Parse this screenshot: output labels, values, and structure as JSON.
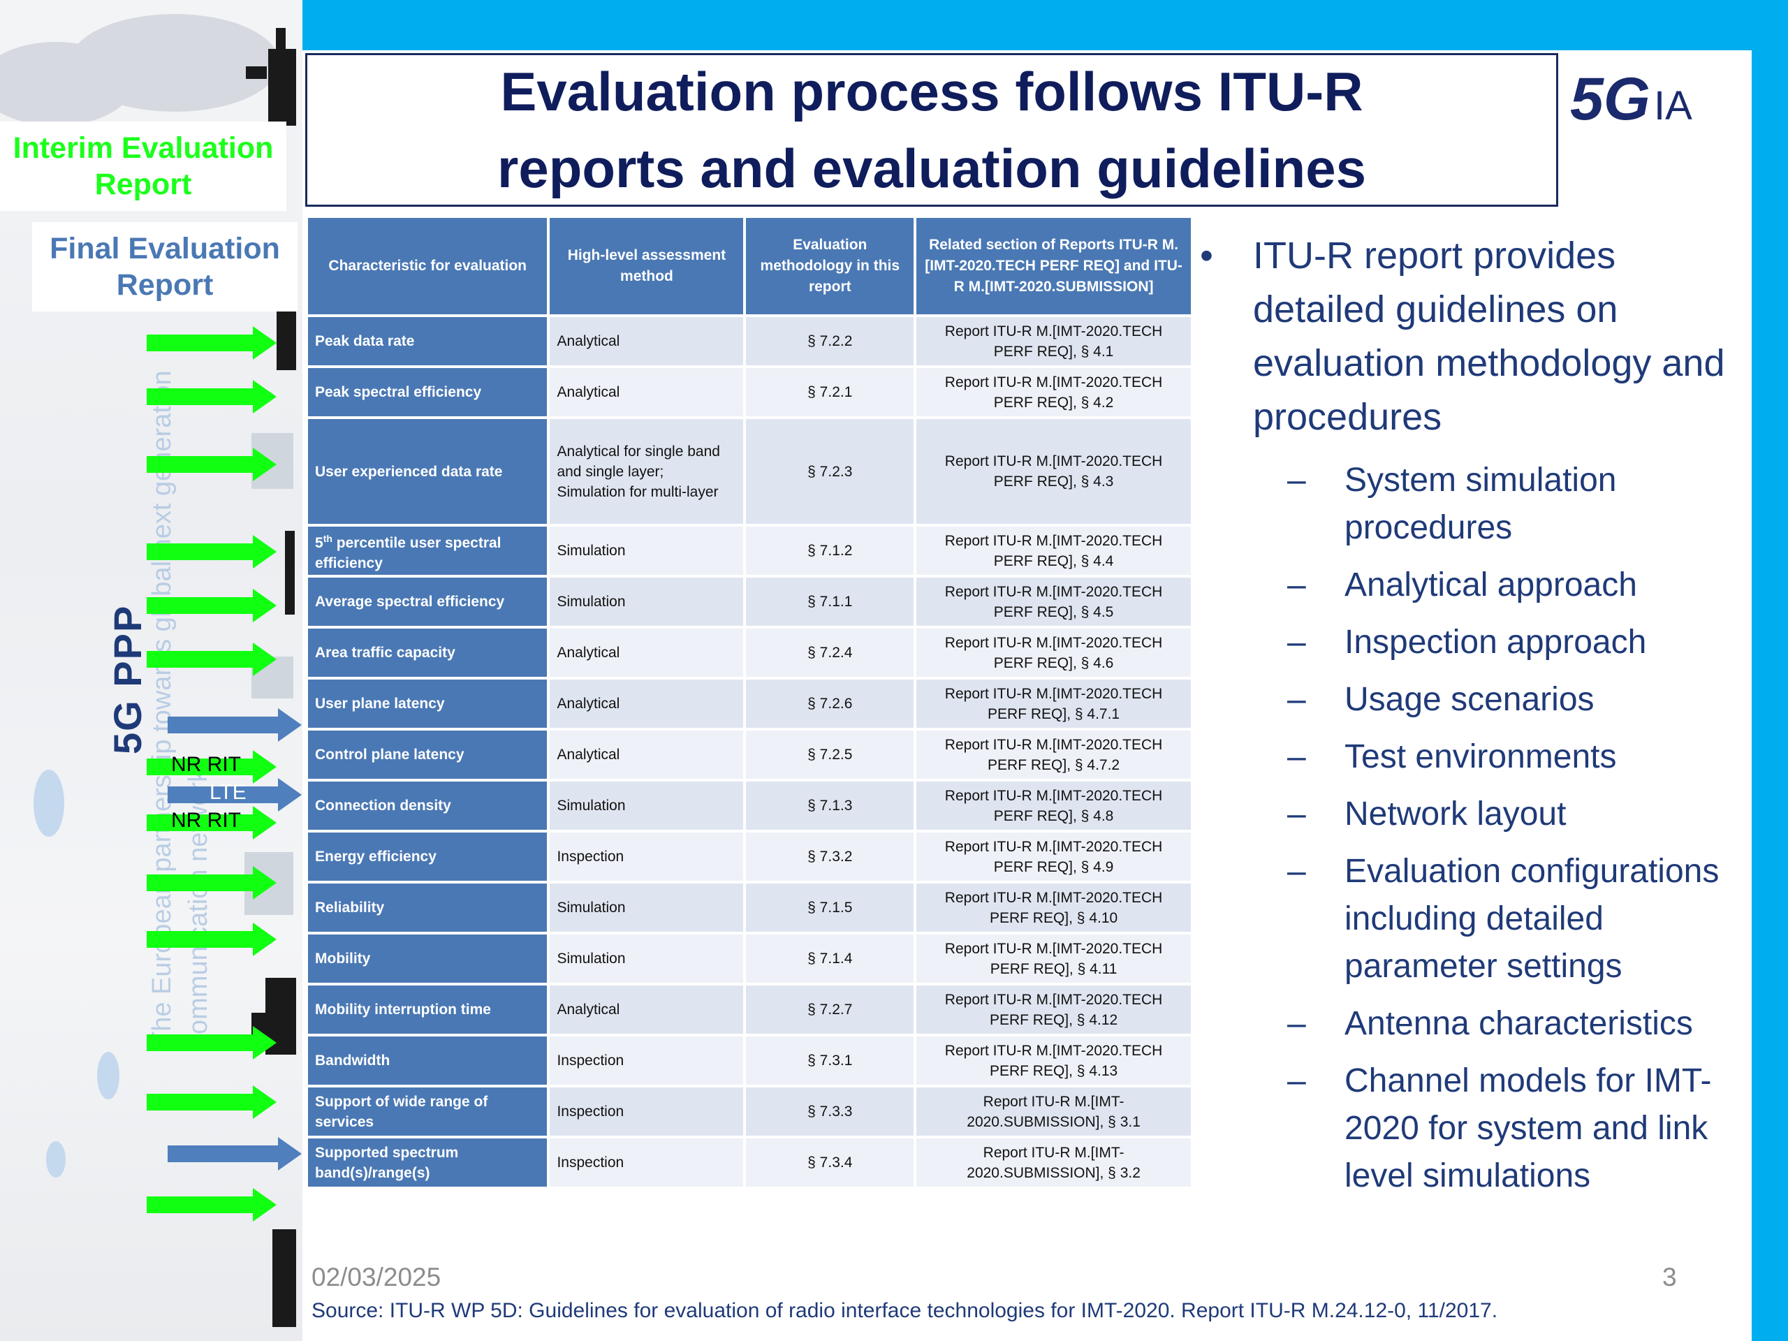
{
  "badges": {
    "interim": "Interim Evaluation Report",
    "final": "Final Evaluation Report"
  },
  "sidebar": {
    "org": "5G PPP",
    "motto_line1": "The European partnership towards global next generation",
    "motto_line2": "communication network",
    "arrow_tags": [
      "NR RIT",
      "LTE",
      "NR RIT"
    ]
  },
  "title": "Evaluation process follows ITU-R reports and evaluation guidelines",
  "logo": {
    "left": "5G",
    "right": "IA"
  },
  "table": {
    "headers": [
      "Characteristic for evaluation",
      "High-level assessment method",
      "Evaluation methodology in this report",
      "Related section of Reports ITU-R M.[IMT-2020.TECH PERF REQ] and ITU-R M.[IMT-2020.SUBMISSION]"
    ],
    "rows": [
      {
        "characteristic": "Peak data rate",
        "method": "Analytical",
        "section": "§ 7.2.2",
        "report": "Report ITU-R M.[IMT-2020.TECH PERF REQ], § 4.1"
      },
      {
        "characteristic": "Peak spectral efficiency",
        "method": "Analytical",
        "section": "§ 7.2.1",
        "report": "Report ITU-R M.[IMT-2020.TECH PERF REQ], § 4.2"
      },
      {
        "characteristic": "User experienced data rate",
        "method": "Analytical for single band and single layer;\nSimulation for multi-layer",
        "section": "§ 7.2.3",
        "report": "Report ITU-R M.[IMT-2020.TECH PERF REQ], § 4.3"
      },
      {
        "characteristic": "5th percentile user spectral efficiency",
        "method": "Simulation",
        "section": "§ 7.1.2",
        "report": "Report ITU-R M.[IMT-2020.TECH PERF REQ], § 4.4"
      },
      {
        "characteristic": "Average spectral efficiency",
        "method": "Simulation",
        "section": "§ 7.1.1",
        "report": "Report ITU-R M.[IMT-2020.TECH PERF REQ], § 4.5"
      },
      {
        "characteristic": "Area traffic capacity",
        "method": "Analytical",
        "section": "§ 7.2.4",
        "report": "Report ITU-R M.[IMT-2020.TECH PERF REQ], § 4.6"
      },
      {
        "characteristic": "User plane latency",
        "method": "Analytical",
        "section": "§ 7.2.6",
        "report": "Report ITU-R M.[IMT-2020.TECH PERF REQ], § 4.7.1"
      },
      {
        "characteristic": "Control plane latency",
        "method": "Analytical",
        "section": "§ 7.2.5",
        "report": "Report ITU-R M.[IMT-2020.TECH PERF REQ], § 4.7.2"
      },
      {
        "characteristic": "Connection density",
        "method": "Simulation",
        "section": "§ 7.1.3",
        "report": "Report ITU-R M.[IMT-2020.TECH PERF REQ], § 4.8"
      },
      {
        "characteristic": "Energy efficiency",
        "method": "Inspection",
        "section": "§ 7.3.2",
        "report": "Report ITU-R M.[IMT-2020.TECH PERF REQ], § 4.9"
      },
      {
        "characteristic": "Reliability",
        "method": "Simulation",
        "section": "§ 7.1.5",
        "report": "Report ITU-R M.[IMT-2020.TECH PERF REQ], § 4.10"
      },
      {
        "characteristic": "Mobility",
        "method": "Simulation",
        "section": "§ 7.1.4",
        "report": "Report ITU-R M.[IMT-2020.TECH PERF REQ], § 4.11"
      },
      {
        "characteristic": "Mobility interruption time",
        "method": "Analytical",
        "section": "§ 7.2.7",
        "report": "Report ITU-R M.[IMT-2020.TECH PERF REQ], § 4.12"
      },
      {
        "characteristic": "Bandwidth",
        "method": "Inspection",
        "section": "§ 7.3.1",
        "report": "Report ITU-R M.[IMT-2020.TECH PERF REQ], § 4.13"
      },
      {
        "characteristic": "Support of wide range of services",
        "method": "Inspection",
        "section": "§ 7.3.3",
        "report": "Report ITU-R M.[IMT-2020.SUBMISSION], § 3.1"
      },
      {
        "characteristic": "Supported spectrum band(s)/range(s)",
        "method": "Inspection",
        "section": "§ 7.3.4",
        "report": "Report ITU-R M.[IMT-2020.SUBMISSION], § 3.2"
      }
    ]
  },
  "bullets": {
    "main": "ITU-R report provides detailed guidelines on evaluation methodology and procedures",
    "subs": [
      "System simulation procedures",
      "Analytical approach",
      "Inspection approach",
      "Usage scenarios",
      "Test environments",
      "Network layout",
      "Evaluation configurations including detailed parameter settings",
      "Antenna characteristics",
      "Channel models for IMT-2020 for system and link level simulations"
    ]
  },
  "footer": {
    "date": "02/03/2025",
    "page": "3",
    "source": "Source:  ITU-R WP 5D: Guidelines for evaluation of radio interface technologies for IMT-2020. Report ITU-R M.24.12-0, 11/2017."
  },
  "colors": {
    "accent_bar": "#00aef0",
    "table_header": "#4a78b4",
    "title_text": "#0f1d5c",
    "arrow_green": "#11ff11",
    "arrow_blue": "#4f7fbd"
  }
}
